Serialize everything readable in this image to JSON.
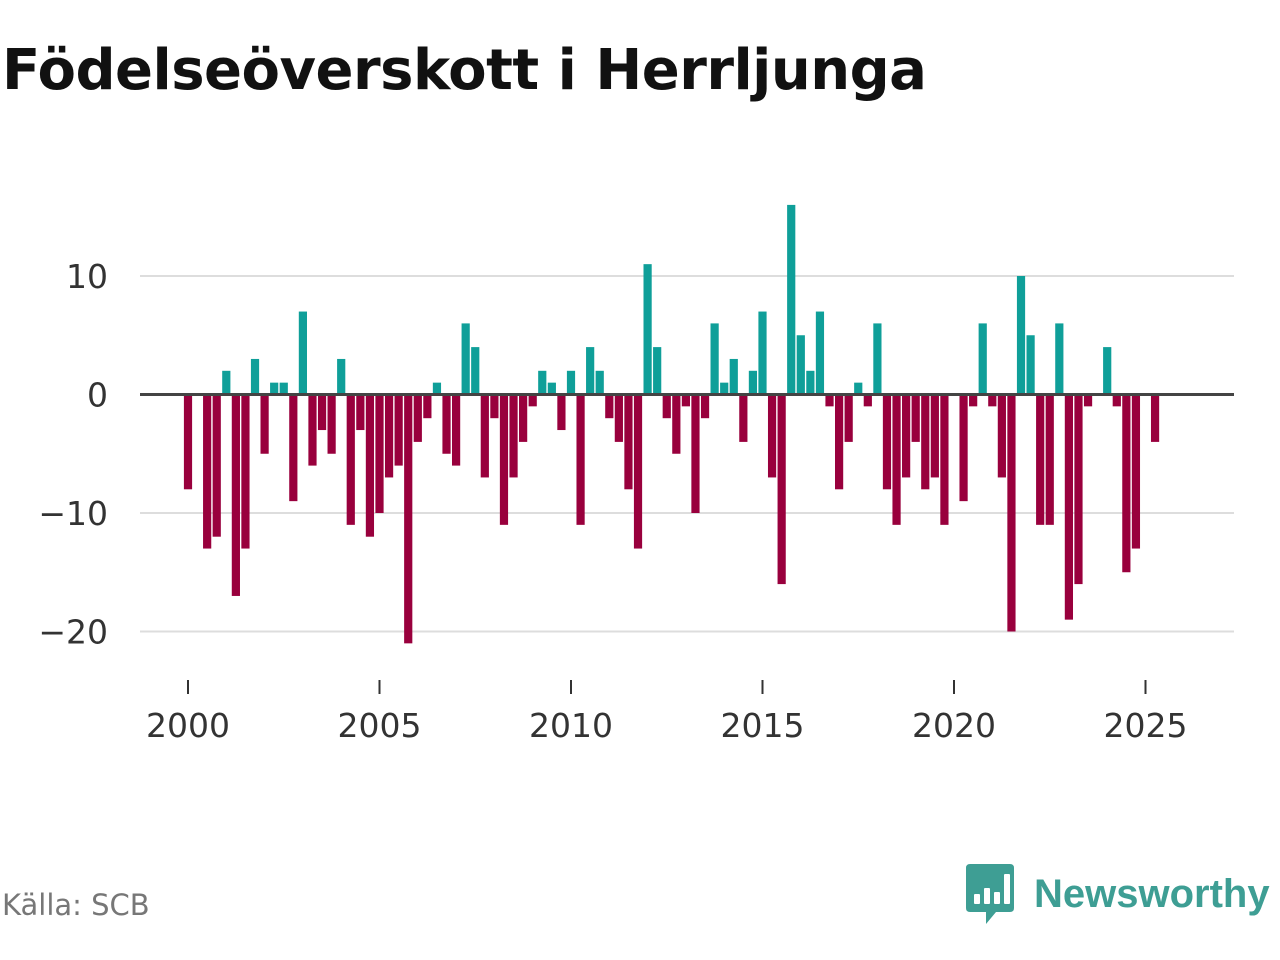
{
  "title": "Födelseöverskott i Herrljunga",
  "source": "Källa: SCB",
  "brand": {
    "name": "Newsworthy",
    "icon": "newsworthy-logo-icon",
    "color": "#3e9e94"
  },
  "colors": {
    "positive": "#0f9f99",
    "negative": "#99003d",
    "zero_line": "#444444",
    "grid": "#dddddd"
  },
  "chart_data": {
    "type": "bar",
    "title": "Födelseöverskott i Herrljunga",
    "xlabel": "",
    "ylabel": "",
    "x_unit": "year, quarterly bars",
    "x_start": 2000.0,
    "x_step": 0.25,
    "xlim": [
      1999.25,
      2027.25
    ],
    "ylim": [
      -23.5,
      18
    ],
    "y_ticks": [
      10,
      0,
      -10,
      -20
    ],
    "y_tick_labels": [
      "10",
      "0",
      "−10",
      "−20"
    ],
    "x_ticks": [
      2000,
      2005,
      2010,
      2015,
      2020,
      2025
    ],
    "x_tick_labels": [
      "2000",
      "2005",
      "2010",
      "2015",
      "2020",
      "2025"
    ],
    "grid": true,
    "values": [
      -8,
      0,
      -13,
      -12,
      2,
      -17,
      -13,
      3,
      -5,
      1,
      1,
      -9,
      7,
      -6,
      -3,
      -5,
      3,
      -11,
      -3,
      -12,
      -10,
      -7,
      -6,
      -21,
      -4,
      -2,
      1,
      -5,
      -6,
      6,
      4,
      -7,
      -2,
      -11,
      -7,
      -4,
      -1,
      2,
      1,
      -3,
      2,
      -11,
      4,
      2,
      -2,
      -4,
      -8,
      -13,
      11,
      4,
      -2,
      -5,
      -1,
      -10,
      -2,
      6,
      1,
      3,
      -4,
      2,
      7,
      -7,
      -16,
      16,
      5,
      2,
      7,
      -1,
      -8,
      -4,
      1,
      -1,
      6,
      -8,
      -11,
      -7,
      -4,
      -8,
      -7,
      -11,
      0,
      -9,
      -1,
      6,
      -1,
      -7,
      -20,
      10,
      5,
      -11,
      -11,
      6,
      -19,
      -16,
      -1,
      0,
      4,
      -1,
      -15,
      -13,
      0,
      -4
    ]
  }
}
